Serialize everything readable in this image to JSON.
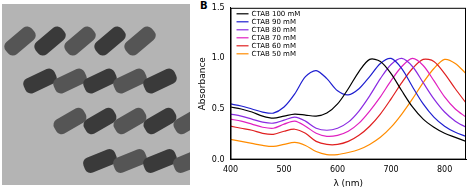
{
  "chart_data": {
    "type": "line",
    "annotations": [
      "B"
    ],
    "x_label": "λ (nm)",
    "y_label": "Absorbance",
    "x": [
      400,
      420,
      440,
      460,
      480,
      500,
      520,
      540,
      560,
      580,
      600,
      620,
      640,
      660,
      680,
      700,
      720,
      740,
      760,
      780,
      800,
      820,
      840
    ],
    "series": [
      {
        "name": "CTAB 100 mM",
        "color": "#000000",
        "values": [
          0.52,
          0.5,
          0.47,
          0.43,
          0.41,
          0.43,
          0.45,
          0.44,
          0.43,
          0.46,
          0.55,
          0.7,
          0.87,
          0.99,
          0.97,
          0.85,
          0.68,
          0.52,
          0.4,
          0.32,
          0.26,
          0.22,
          0.18
        ]
      },
      {
        "name": "CTAB 90 mM",
        "color": "#1f1fd0",
        "values": [
          0.55,
          0.53,
          0.5,
          0.47,
          0.46,
          0.52,
          0.65,
          0.82,
          0.88,
          0.8,
          0.68,
          0.64,
          0.7,
          0.82,
          0.95,
          1.0,
          0.9,
          0.72,
          0.55,
          0.42,
          0.33,
          0.27,
          0.23
        ]
      },
      {
        "name": "CTAB 80 mM",
        "color": "#8a2be2",
        "values": [
          0.45,
          0.43,
          0.4,
          0.37,
          0.36,
          0.39,
          0.42,
          0.38,
          0.31,
          0.29,
          0.31,
          0.37,
          0.48,
          0.63,
          0.8,
          0.94,
          1.0,
          0.92,
          0.76,
          0.6,
          0.47,
          0.38,
          0.32
        ]
      },
      {
        "name": "CTAB 70 mM",
        "color": "#e020c0",
        "values": [
          0.4,
          0.38,
          0.35,
          0.32,
          0.31,
          0.35,
          0.38,
          0.33,
          0.26,
          0.23,
          0.24,
          0.28,
          0.36,
          0.48,
          0.62,
          0.78,
          0.92,
          1.0,
          0.93,
          0.78,
          0.62,
          0.5,
          0.42
        ]
      },
      {
        "name": "CTAB 60 mM",
        "color": "#e02020",
        "values": [
          0.33,
          0.31,
          0.29,
          0.26,
          0.25,
          0.28,
          0.3,
          0.26,
          0.18,
          0.15,
          0.15,
          0.18,
          0.24,
          0.33,
          0.45,
          0.6,
          0.76,
          0.9,
          0.99,
          0.97,
          0.85,
          0.7,
          0.56
        ]
      },
      {
        "name": "CTAB 50 mM",
        "color": "#ff8c00",
        "values": [
          0.2,
          0.18,
          0.16,
          0.14,
          0.13,
          0.15,
          0.17,
          0.14,
          0.08,
          0.05,
          0.05,
          0.07,
          0.1,
          0.15,
          0.22,
          0.32,
          0.45,
          0.6,
          0.76,
          0.9,
          0.99,
          0.95,
          0.85
        ]
      }
    ],
    "xlim": [
      400,
      840
    ],
    "xticks": [
      400,
      500,
      600,
      700,
      800
    ],
    "ylim": [
      0,
      1.5
    ],
    "yticks": [
      {
        "value": 0,
        "label": "0.0"
      },
      0.5,
      {
        "value": 1,
        "label": "1.0"
      },
      1.5
    ],
    "grid": false,
    "legend": "upper left"
  }
}
